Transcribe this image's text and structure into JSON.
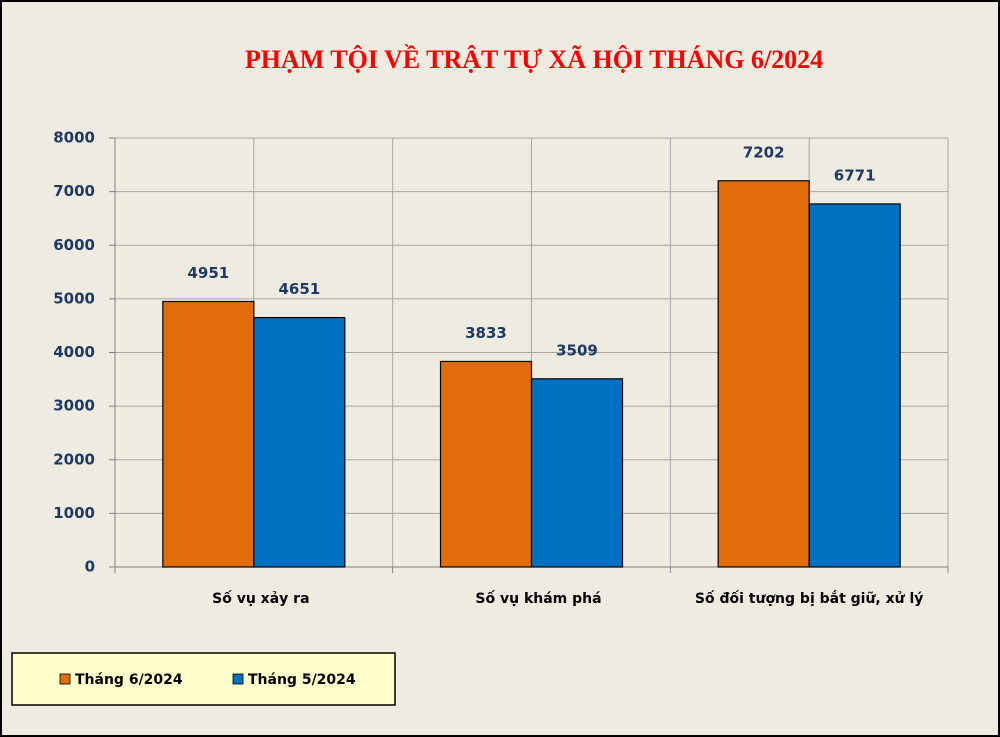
{
  "chart_data": {
    "type": "bar",
    "title": "PHẠM TỘI VỀ TRẬT TỰ XÃ HỘI THÁNG 6/2024",
    "categories": [
      "Số vụ xảy ra",
      "Số vụ khám phá",
      "Số đối tượng bị bắt giữ, xử lý"
    ],
    "series": [
      {
        "name": "Tháng 6/2024",
        "color": "#e36c0a",
        "values": [
          4951,
          3833,
          7202
        ]
      },
      {
        "name": "Tháng 5/2024",
        "color": "#0070c0",
        "values": [
          4651,
          3509,
          6771
        ]
      }
    ],
    "ylim": [
      0,
      8000
    ],
    "yticks": [
      0,
      1000,
      2000,
      3000,
      4000,
      5000,
      6000,
      7000,
      8000
    ],
    "grid": true,
    "legend": "bottom-left"
  }
}
